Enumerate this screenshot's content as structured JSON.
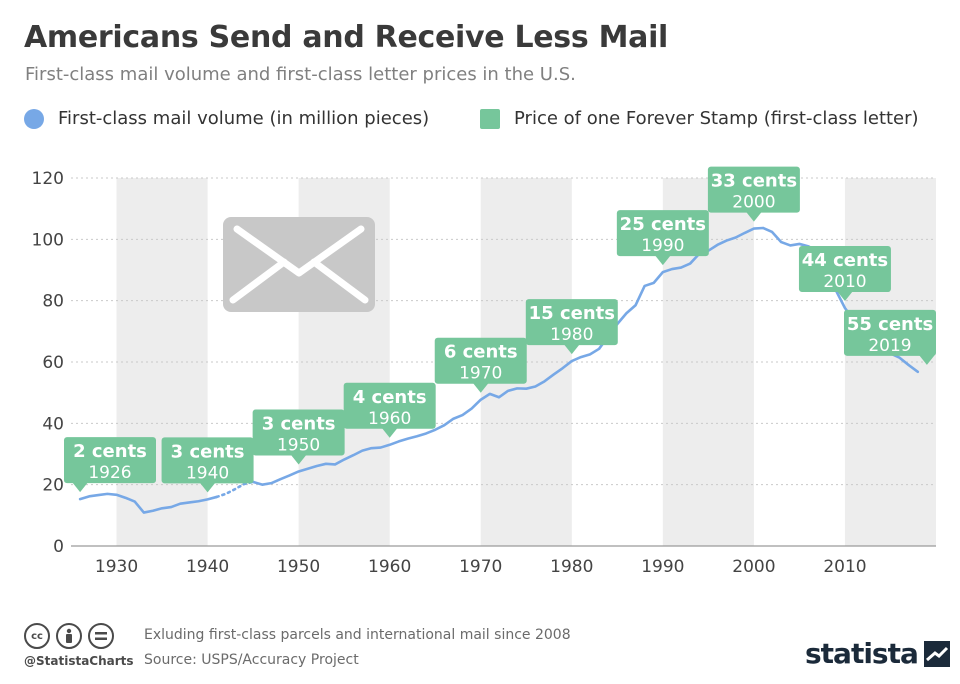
{
  "title": "Americans Send and Receive Less Mail",
  "subtitle": "First-class mail volume and first-class letter prices in the U.S.",
  "legend": [
    {
      "label": "First-class mail volume (in million pieces)",
      "color": "#77a8e6",
      "shape": "circle"
    },
    {
      "label": "Price of one Forever Stamp (first-class letter)",
      "color": "#76c69b",
      "shape": "square"
    }
  ],
  "footer": {
    "handle": "@StatistaCharts",
    "note": "Exluding first-class parcels and international mail since 2008",
    "source": "Source: USPS/Accuracy Project",
    "brand": "statista",
    "license_icons": [
      "cc-icon",
      "attribution-icon",
      "no-derivatives-icon"
    ]
  },
  "chart_data": {
    "type": "line",
    "xlim": [
      1925,
      2020
    ],
    "ylim": [
      0,
      120
    ],
    "y_ticks": [
      0,
      20,
      40,
      60,
      80,
      100,
      120
    ],
    "x_ticks": [
      1930,
      1940,
      1950,
      1960,
      1970,
      1980,
      1990,
      2000,
      2010
    ],
    "x_tick_labels": [
      "1930",
      "1940",
      "1950",
      "1960",
      "1970",
      "1980",
      "1990",
      "2000",
      "2010"
    ],
    "y_tick_labels": [
      "0",
      "20",
      "40",
      "60",
      "80",
      "100",
      "120"
    ],
    "shaded_decades": [
      [
        1930,
        1940
      ],
      [
        1950,
        1960
      ],
      [
        1970,
        1980
      ],
      [
        1990,
        2000
      ],
      [
        2010,
        2020
      ]
    ],
    "grid": "horizontal",
    "legend_position": "top-left",
    "line_color": "#77a8e6",
    "dashed_range": [
      1941,
      1945
    ],
    "series": [
      {
        "x": [
          1926,
          1927,
          1928,
          1929,
          1930,
          1931,
          1932,
          1933,
          1934,
          1935,
          1936,
          1937,
          1938,
          1939,
          1940,
          1941,
          1942,
          1943,
          1944,
          1945,
          1946,
          1947,
          1948,
          1949,
          1950,
          1951,
          1952,
          1953,
          1954,
          1955,
          1956,
          1957,
          1958,
          1959,
          1960,
          1961,
          1962,
          1963,
          1964,
          1965,
          1966,
          1967,
          1968,
          1969,
          1970,
          1971,
          1972,
          1973,
          1974,
          1975,
          1976,
          1977,
          1978,
          1979,
          1980,
          1981,
          1982,
          1983,
          1984,
          1985,
          1986,
          1987,
          1988,
          1989,
          1990,
          1991,
          1992,
          1993,
          1994,
          1995,
          1996,
          1997,
          1998,
          1999,
          2000,
          2001,
          2002,
          2003,
          2004,
          2005,
          2006,
          2007,
          2008,
          2009,
          2010,
          2011,
          2012,
          2013,
          2014,
          2015,
          2016,
          2017,
          2018
        ],
        "y": [
          15.3,
          16.2,
          16.6,
          17.0,
          16.7,
          15.7,
          14.5,
          10.9,
          11.5,
          12.3,
          12.7,
          13.8,
          14.2,
          14.6,
          15.2,
          16.0,
          17.0,
          18.5,
          20.2,
          20.9,
          20.0,
          20.5,
          21.8,
          23.0,
          24.3,
          25.2,
          26.1,
          26.8,
          26.6,
          28.2,
          29.6,
          31.1,
          31.9,
          32.1,
          33.0,
          34.1,
          35.0,
          35.8,
          36.7,
          37.9,
          39.4,
          41.5,
          42.7,
          44.8,
          47.7,
          49.6,
          48.5,
          50.6,
          51.4,
          51.3,
          52.0,
          53.7,
          55.9,
          58.0,
          60.3,
          61.6,
          62.5,
          64.3,
          68.4,
          72.4,
          75.9,
          78.5,
          84.8,
          85.8,
          89.3,
          90.3,
          90.8,
          92.1,
          95.3,
          96.3,
          98.2,
          99.6,
          100.6,
          102.1,
          103.5,
          103.7,
          102.4,
          99.1,
          98.0,
          98.5,
          97.7,
          96.0,
          90.7,
          83.4,
          77.6,
          73.5,
          69.0,
          66.0,
          64.1,
          62.8,
          61.4,
          59.0,
          56.8
        ]
      }
    ],
    "callouts": [
      {
        "price": "2 cents",
        "year": "1926",
        "x": 1926,
        "y": 15.3
      },
      {
        "price": "3 cents",
        "year": "1940",
        "x": 1940,
        "y": 15.2
      },
      {
        "price": "3 cents",
        "year": "1950",
        "x": 1950,
        "y": 24.3
      },
      {
        "price": "4 cents",
        "year": "1960",
        "x": 1960,
        "y": 33.0
      },
      {
        "price": "6 cents",
        "year": "1970",
        "x": 1970,
        "y": 47.7
      },
      {
        "price": "15 cents",
        "year": "1980",
        "x": 1980,
        "y": 60.3
      },
      {
        "price": "25 cents",
        "year": "1990",
        "x": 1990,
        "y": 89.3
      },
      {
        "price": "33 cents",
        "year": "2000",
        "x": 2000,
        "y": 103.5
      },
      {
        "price": "44 cents",
        "year": "2010",
        "x": 2010,
        "y": 77.6
      },
      {
        "price": "55 cents",
        "year": "2019",
        "x": 2019,
        "y": 56.8
      }
    ],
    "callout_color": "#76c69b",
    "decoration": "envelope-icon"
  }
}
